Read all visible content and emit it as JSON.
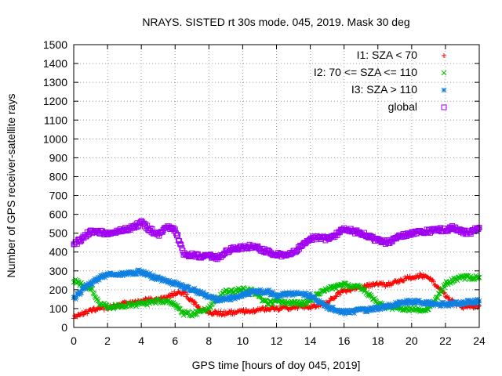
{
  "chart_data": {
    "type": "scatter",
    "title": "NRAYS. SISTED rt 30s mode. 045, 2019. Mask 30 deg",
    "xlabel": "GPS time [hours of doy 045, 2019]",
    "ylabel": "Number of GPS receiver-satellite rays",
    "xlim": [
      0,
      24
    ],
    "ylim": [
      0,
      1500
    ],
    "xticks": [
      "0",
      "2",
      "4",
      "6",
      "8",
      "10",
      "12",
      "14",
      "16",
      "18",
      "20",
      "22",
      "24"
    ],
    "yticks": [
      "0",
      "100",
      "200",
      "300",
      "400",
      "500",
      "600",
      "700",
      "800",
      "900",
      "1000",
      "1100",
      "1200",
      "1300",
      "1400",
      "1500"
    ],
    "grid": true,
    "legend_position": "top-right",
    "series": [
      {
        "name": "I1: SZA < 70",
        "marker": "plus",
        "color": "#ff0000",
        "x": [
          0,
          0.5,
          1,
          1.5,
          2,
          2.5,
          3,
          3.5,
          4,
          4.5,
          5,
          5.5,
          6,
          6.5,
          7,
          7.5,
          8,
          8.5,
          9,
          9.5,
          10,
          10.5,
          11,
          11.5,
          12,
          12.5,
          13,
          13.5,
          14,
          14.5,
          15,
          15.5,
          16,
          16.5,
          17,
          17.5,
          18,
          18.5,
          19,
          19.5,
          20,
          20.5,
          21,
          21.5,
          22,
          22.5,
          23,
          23.5,
          24
        ],
        "y": [
          55,
          70,
          90,
          100,
          105,
          115,
          125,
          135,
          140,
          150,
          145,
          160,
          180,
          185,
          140,
          95,
          80,
          75,
          75,
          80,
          85,
          90,
          95,
          100,
          100,
          105,
          105,
          110,
          110,
          115,
          130,
          170,
          190,
          205,
          215,
          225,
          230,
          225,
          240,
          255,
          265,
          275,
          265,
          220,
          170,
          130,
          110,
          110,
          115
        ]
      },
      {
        "name": "I2: 70 <= SZA <= 110",
        "marker": "cross",
        "color": "#00c000",
        "x": [
          0,
          0.5,
          1,
          1.5,
          2,
          2.5,
          3,
          3.5,
          4,
          4.5,
          5,
          5.5,
          6,
          6.5,
          7,
          7.5,
          8,
          8.5,
          9,
          9.5,
          10,
          10.5,
          11,
          11.5,
          12,
          12.5,
          13,
          13.5,
          14,
          14.5,
          15,
          15.5,
          16,
          16.5,
          17,
          17.5,
          18,
          18.5,
          19,
          19.5,
          20,
          20.5,
          21,
          21.5,
          22,
          22.5,
          23,
          23.5,
          24
        ],
        "y": [
          250,
          225,
          210,
          130,
          110,
          110,
          115,
          120,
          125,
          130,
          140,
          135,
          120,
          75,
          70,
          85,
          100,
          150,
          190,
          195,
          200,
          195,
          160,
          130,
          135,
          135,
          130,
          125,
          140,
          185,
          200,
          215,
          225,
          220,
          210,
          170,
          130,
          105,
          100,
          100,
          95,
          95,
          100,
          160,
          230,
          255,
          265,
          265,
          265
        ]
      },
      {
        "name": "I3: SZA > 110",
        "marker": "star",
        "color": "#1080e0",
        "x": [
          0,
          0.5,
          1,
          1.5,
          2,
          2.5,
          3,
          3.5,
          4,
          4.5,
          5,
          5.5,
          6,
          6.5,
          7,
          7.5,
          8,
          8.5,
          9,
          9.5,
          10,
          10.5,
          11,
          11.5,
          12,
          12.5,
          13,
          13.5,
          14,
          14.5,
          15,
          15.5,
          16,
          16.5,
          17,
          17.5,
          18,
          18.5,
          19,
          19.5,
          20,
          20.5,
          21,
          21.5,
          22,
          22.5,
          23,
          23.5,
          24
        ],
        "y": [
          150,
          200,
          235,
          260,
          280,
          285,
          280,
          290,
          295,
          275,
          260,
          245,
          235,
          215,
          200,
          185,
          160,
          150,
          150,
          160,
          175,
          185,
          195,
          190,
          170,
          175,
          180,
          175,
          170,
          140,
          110,
          90,
          80,
          85,
          90,
          95,
          100,
          110,
          120,
          130,
          140,
          135,
          130,
          125,
          120,
          125,
          130,
          135,
          140
        ]
      },
      {
        "name": "global",
        "marker": "square",
        "color": "#a000f0",
        "x": [
          0,
          0.5,
          1,
          1.5,
          2,
          2.5,
          3,
          3.5,
          4,
          4.5,
          5,
          5.5,
          6,
          6.5,
          7,
          7.5,
          8,
          8.5,
          9,
          9.5,
          10,
          10.5,
          11,
          11.5,
          12,
          12.5,
          13,
          13.5,
          14,
          14.5,
          15,
          15.5,
          16,
          16.5,
          17,
          17.5,
          18,
          18.5,
          19,
          19.5,
          20,
          20.5,
          21,
          21.5,
          22,
          22.5,
          23,
          23.5,
          24
        ],
        "y": [
          440,
          470,
          510,
          505,
          500,
          510,
          520,
          530,
          555,
          520,
          490,
          530,
          520,
          390,
          385,
          375,
          380,
          370,
          400,
          420,
          425,
          430,
          420,
          400,
          390,
          380,
          400,
          430,
          470,
          480,
          470,
          490,
          525,
          510,
          500,
          480,
          460,
          450,
          470,
          490,
          500,
          505,
          510,
          520,
          515,
          530,
          505,
          505,
          530
        ]
      }
    ]
  }
}
